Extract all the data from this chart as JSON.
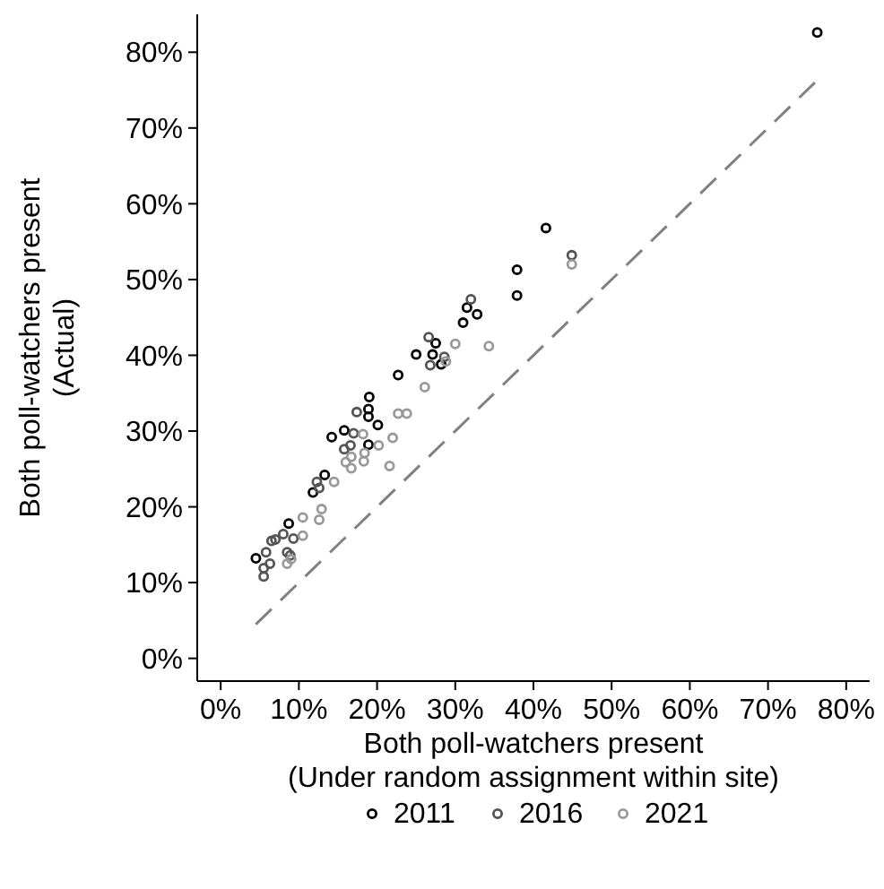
{
  "chart_data": {
    "type": "scatter",
    "xlabel": "Both poll-watchers present\n(Under random assignment within site)",
    "ylabel": "Both poll-watchers present\n(Actual)",
    "xlim": [
      -3,
      83
    ],
    "ylim": [
      -3,
      85
    ],
    "xticks": [
      {
        "value": 0,
        "label": "0%"
      },
      {
        "value": 10,
        "label": "10%"
      },
      {
        "value": 20,
        "label": "20%"
      },
      {
        "value": 30,
        "label": "30%"
      },
      {
        "value": 40,
        "label": "40%"
      },
      {
        "value": 50,
        "label": "50%"
      },
      {
        "value": 60,
        "label": "60%"
      },
      {
        "value": 70,
        "label": "70%"
      },
      {
        "value": 80,
        "label": "80%"
      }
    ],
    "yticks": [
      {
        "value": 0,
        "label": "0%"
      },
      {
        "value": 10,
        "label": "10%"
      },
      {
        "value": 20,
        "label": "20%"
      },
      {
        "value": 30,
        "label": "30%"
      },
      {
        "value": 40,
        "label": "40%"
      },
      {
        "value": 50,
        "label": "50%"
      },
      {
        "value": 60,
        "label": "60%"
      },
      {
        "value": 70,
        "label": "70%"
      },
      {
        "value": 80,
        "label": "80%"
      }
    ],
    "grid": false,
    "legend": "bottom",
    "marker": "circle",
    "series": [
      {
        "type": "line",
        "color": "#808080",
        "line_style": "dashed",
        "marker": "none",
        "x": [
          4.5,
          76
        ],
        "values": [
          4.5,
          76
        ]
      },
      {
        "name": "2011",
        "color": "#000000",
        "x": [
          76.3,
          41.6,
          37.9,
          37.9,
          31.5,
          32.8,
          31.0,
          27.5,
          25.0,
          27.1,
          28.2,
          22.7,
          19.0,
          18.9,
          18.9,
          20.1,
          15.8,
          14.2,
          18.9,
          4.5,
          11.8,
          13.3,
          8.7
        ],
        "values": [
          82.6,
          56.8,
          51.3,
          47.9,
          46.3,
          45.4,
          44.3,
          41.6,
          40.1,
          40.1,
          38.8,
          37.4,
          34.5,
          32.9,
          31.9,
          30.8,
          30.1,
          29.2,
          28.2,
          13.2,
          21.9,
          24.2,
          17.8
        ]
      },
      {
        "name": "2016",
        "color": "#555555",
        "x": [
          44.9,
          32.0,
          26.6,
          26.8,
          28.6,
          17.4,
          16.6,
          15.8,
          17.0,
          12.3,
          12.6,
          5.8,
          6.5,
          7.0,
          8.0,
          9.3,
          5.5,
          5.5,
          6.3,
          8.5,
          8.9
        ],
        "values": [
          53.2,
          47.4,
          42.4,
          38.7,
          39.8,
          32.5,
          28.1,
          27.6,
          29.7,
          23.3,
          22.5,
          14.0,
          15.5,
          15.7,
          16.4,
          15.8,
          11.9,
          10.8,
          12.5,
          14.0,
          13.6
        ]
      },
      {
        "name": "2021",
        "color": "#999999",
        "x": [
          44.9,
          30.0,
          34.3,
          28.8,
          26.1,
          22.7,
          23.8,
          22.0,
          20.2,
          18.2,
          18.4,
          16.7,
          18.3,
          16.0,
          16.7,
          21.6,
          14.5,
          9.0,
          8.5,
          10.5,
          10.5,
          12.6,
          12.9
        ],
        "values": [
          52.0,
          41.5,
          41.2,
          39.2,
          35.8,
          32.3,
          32.3,
          29.1,
          28.1,
          29.6,
          27.1,
          26.6,
          26.0,
          25.9,
          25.1,
          25.4,
          23.3,
          13.1,
          12.5,
          18.6,
          16.2,
          18.3,
          19.7
        ]
      }
    ]
  }
}
